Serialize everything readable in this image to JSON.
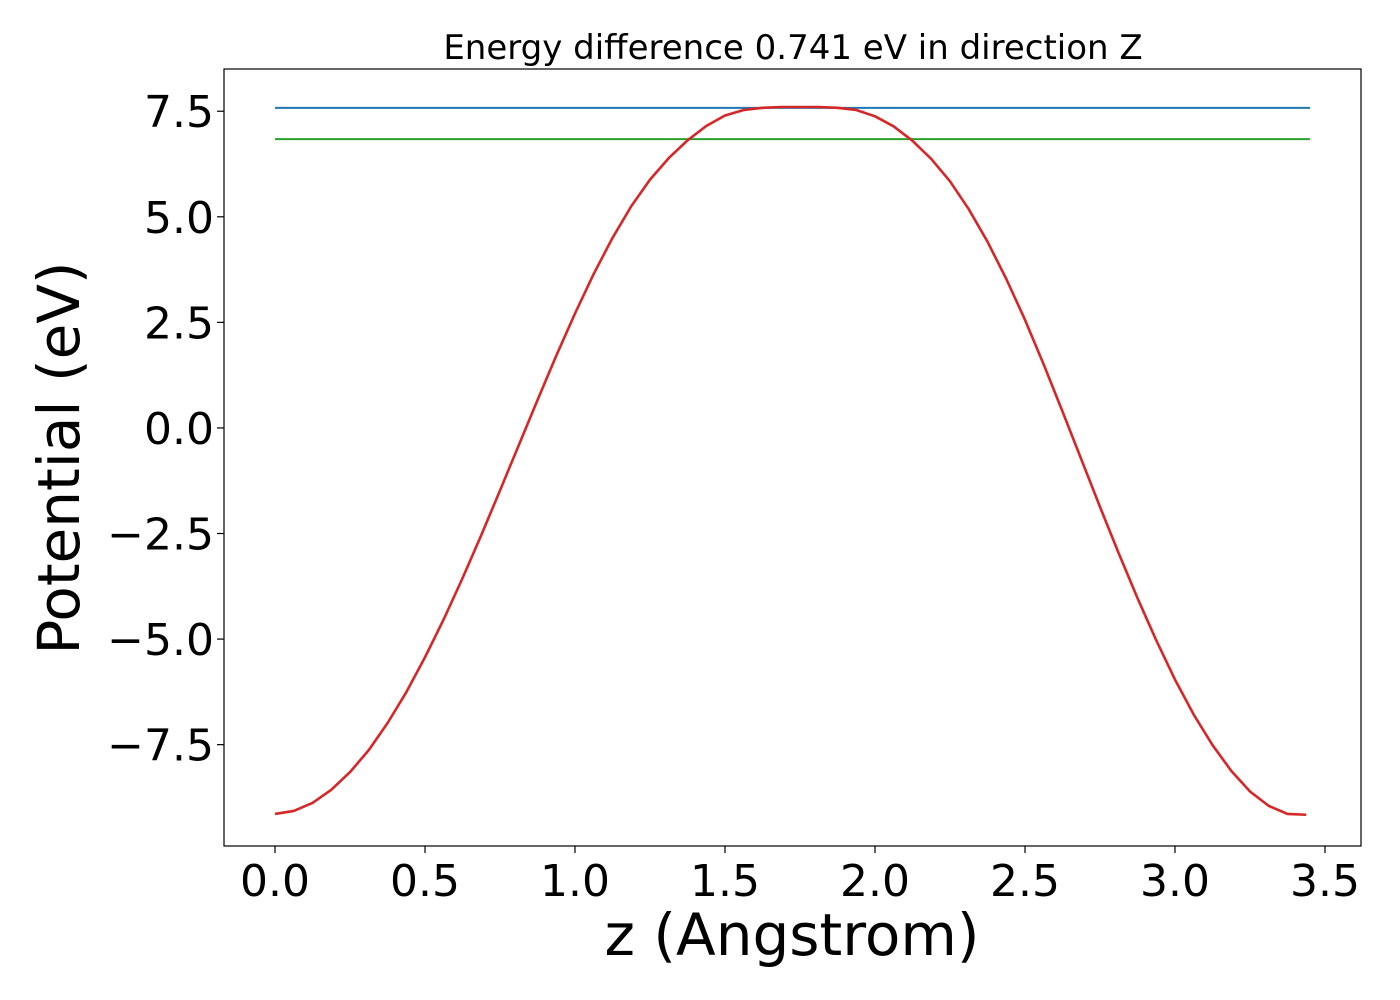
{
  "chart_data": {
    "type": "line",
    "title": "Energy difference 0.741 eV in direction Z",
    "xlabel": "z (Angstrom)",
    "ylabel": "Potential (eV)",
    "xlim": [
      -0.17,
      3.62
    ],
    "ylim": [
      -9.9,
      8.5
    ],
    "xticks": [
      0.0,
      0.5,
      1.0,
      1.5,
      2.0,
      2.5,
      3.0,
      3.5
    ],
    "xtick_labels": [
      "0.0",
      "0.5",
      "1.0",
      "1.5",
      "2.0",
      "2.5",
      "3.0",
      "3.5"
    ],
    "yticks": [
      -7.5,
      -5.0,
      -2.5,
      0.0,
      2.5,
      5.0,
      7.5
    ],
    "ytick_labels": [
      "−7.5",
      "−5.0",
      "−2.5",
      "0.0",
      "2.5",
      "5.0",
      "7.5"
    ],
    "grid": false,
    "legend": "none",
    "series": [
      {
        "color": "#1f77b4",
        "style": "hline",
        "x": [
          0.0,
          3.45
        ],
        "y": [
          7.58,
          7.58
        ]
      },
      {
        "color": "#2ca02c",
        "style": "hline",
        "x": [
          0.0,
          3.45
        ],
        "y": [
          6.84,
          6.84
        ]
      },
      {
        "color": "#d62728",
        "style": "line",
        "x": [
          0.0,
          0.0625,
          0.125,
          0.1875,
          0.25,
          0.3125,
          0.375,
          0.4375,
          0.5,
          0.5625,
          0.625,
          0.6875,
          0.75,
          0.8125,
          0.875,
          0.9375,
          1.0,
          1.0625,
          1.125,
          1.1875,
          1.25,
          1.3125,
          1.375,
          1.4375,
          1.5,
          1.5625,
          1.625,
          1.6875,
          1.75,
          1.8125,
          1.875,
          1.9375,
          2.0,
          2.0625,
          2.125,
          2.1875,
          2.25,
          2.3125,
          2.375,
          2.4375,
          2.5,
          2.5625,
          2.625,
          2.6875,
          2.75,
          2.8125,
          2.875,
          2.9375,
          3.0,
          3.0625,
          3.125,
          3.1875,
          3.25,
          3.3125,
          3.375,
          3.4375
        ],
        "y": [
          -9.14,
          -9.07,
          -8.88,
          -8.57,
          -8.15,
          -7.63,
          -6.99,
          -6.26,
          -5.43,
          -4.53,
          -3.56,
          -2.54,
          -1.48,
          -0.41,
          0.66,
          1.71,
          2.71,
          3.65,
          4.5,
          5.25,
          5.88,
          6.39,
          6.81,
          7.15,
          7.4,
          7.53,
          7.58,
          7.6,
          7.6,
          7.6,
          7.58,
          7.53,
          7.38,
          7.14,
          6.8,
          6.37,
          5.84,
          5.18,
          4.41,
          3.53,
          2.56,
          1.5,
          0.39,
          -0.74,
          -1.87,
          -2.97,
          -4.03,
          -5.03,
          -5.96,
          -6.79,
          -7.51,
          -8.12,
          -8.61,
          -8.95,
          -9.14,
          -9.16
        ]
      }
    ]
  }
}
